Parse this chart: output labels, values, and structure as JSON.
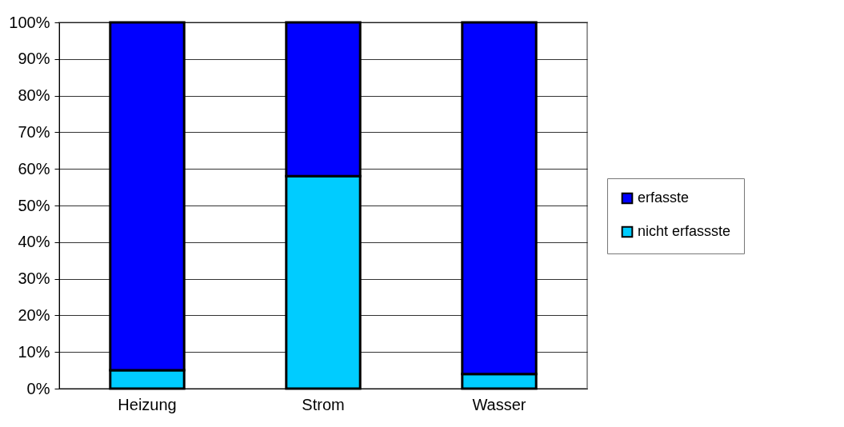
{
  "chart_data": {
    "type": "bar",
    "stacked": true,
    "categories": [
      "Heizung",
      "Strom",
      "Wasser"
    ],
    "series": [
      {
        "name": "nicht erfassste",
        "color": "#00ccff",
        "values": [
          5,
          58,
          4
        ]
      },
      {
        "name": "erfasste",
        "color": "#0000ff",
        "values": [
          95,
          42,
          96
        ]
      }
    ],
    "ylim": [
      0,
      100
    ],
    "yticks": [
      {
        "value": 0,
        "label": "0%"
      },
      {
        "value": 10,
        "label": "10%"
      },
      {
        "value": 20,
        "label": "20%"
      },
      {
        "value": 30,
        "label": "30%"
      },
      {
        "value": 40,
        "label": "40%"
      },
      {
        "value": 50,
        "label": "50%"
      },
      {
        "value": 60,
        "label": "60%"
      },
      {
        "value": 70,
        "label": "70%"
      },
      {
        "value": 80,
        "label": "80%"
      },
      {
        "value": 90,
        "label": "90%"
      },
      {
        "value": 100,
        "label": "100%"
      }
    ],
    "grid": "y",
    "legend": "right"
  }
}
